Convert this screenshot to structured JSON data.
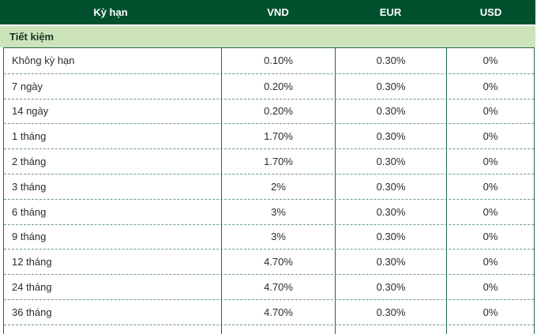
{
  "chart_data": {
    "type": "table",
    "columns": [
      "Kỳ hạn",
      "VND",
      "EUR",
      "USD"
    ],
    "section": "Tiết kiệm",
    "rows": [
      {
        "term": "Không kỳ hạn",
        "vnd": "0.10%",
        "eur": "0.30%",
        "usd": "0%"
      },
      {
        "term": "7 ngày",
        "vnd": "0.20%",
        "eur": "0.30%",
        "usd": "0%"
      },
      {
        "term": "14 ngày",
        "vnd": "0.20%",
        "eur": "0.30%",
        "usd": "0%"
      },
      {
        "term": "1 tháng",
        "vnd": "1.70%",
        "eur": "0.30%",
        "usd": "0%"
      },
      {
        "term": "2 tháng",
        "vnd": "1.70%",
        "eur": "0.30%",
        "usd": "0%"
      },
      {
        "term": "3 tháng",
        "vnd": "2%",
        "eur": "0.30%",
        "usd": "0%"
      },
      {
        "term": "6 tháng",
        "vnd": "3%",
        "eur": "0.30%",
        "usd": "0%"
      },
      {
        "term": "9 tháng",
        "vnd": "3%",
        "eur": "0.30%",
        "usd": "0%"
      },
      {
        "term": "12 tháng",
        "vnd": "4.70%",
        "eur": "0.30%",
        "usd": "0%"
      },
      {
        "term": "24 tháng",
        "vnd": "4.70%",
        "eur": "0.30%",
        "usd": "0%"
      },
      {
        "term": "36 tháng",
        "vnd": "4.70%",
        "eur": "0.30%",
        "usd": "0%"
      }
    ],
    "layout": {
      "grid": "solid vertical column lines, dashed horizontal row separators",
      "legend": "none"
    }
  },
  "colors": {
    "header_bg": "#02512e",
    "header_text": "#ffffff",
    "section_bg": "#cde4bb",
    "section_text": "#16351f",
    "border_solid": "#23684a",
    "border_dashed": "#6f9c88",
    "body_text": "#2b2b2b",
    "row_bg": "#ffffff"
  }
}
